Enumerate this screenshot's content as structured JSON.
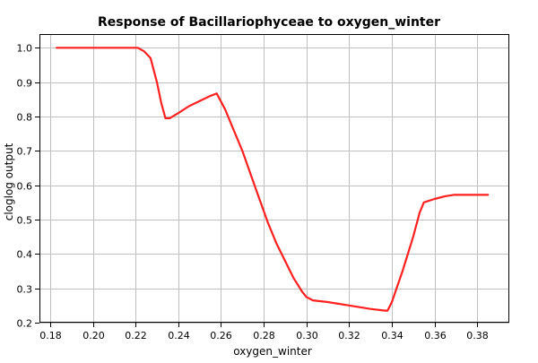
{
  "chart_data": {
    "type": "line",
    "title": "Response of Bacillariophyceae to oxygen_winter",
    "xlabel": "oxygen_winter",
    "ylabel": "cloglog output",
    "xlim": [
      0.175,
      0.395
    ],
    "ylim": [
      0.2,
      1.04
    ],
    "x_ticks": [
      0.18,
      0.2,
      0.22,
      0.24,
      0.26,
      0.28,
      0.3,
      0.32,
      0.34,
      0.36,
      0.38
    ],
    "x_tick_labels": [
      "0.18",
      "0.20",
      "0.22",
      "0.24",
      "0.26",
      "0.28",
      "0.30",
      "0.32",
      "0.34",
      "0.36",
      "0.38"
    ],
    "y_ticks": [
      0.2,
      0.3,
      0.4,
      0.5,
      0.6,
      0.7,
      0.8,
      0.9,
      1.0
    ],
    "y_tick_labels": [
      "0.2",
      "0.3",
      "0.4",
      "0.5",
      "0.6",
      "0.7",
      "0.8",
      "0.9",
      "1.0"
    ],
    "grid": true,
    "legend": "none",
    "series": [
      {
        "color": "#ff2020",
        "x": [
          0.183,
          0.2,
          0.221,
          0.224,
          0.227,
          0.23,
          0.232,
          0.234,
          0.236,
          0.24,
          0.245,
          0.25,
          0.255,
          0.258,
          0.262,
          0.266,
          0.27,
          0.274,
          0.278,
          0.282,
          0.286,
          0.29,
          0.294,
          0.298,
          0.3,
          0.303,
          0.31,
          0.32,
          0.33,
          0.337,
          0.338,
          0.34,
          0.345,
          0.35,
          0.353,
          0.355,
          0.36,
          0.365,
          0.369,
          0.375,
          0.385
        ],
        "y": [
          1.0,
          1.0,
          1.0,
          0.99,
          0.97,
          0.9,
          0.84,
          0.795,
          0.795,
          0.81,
          0.83,
          0.845,
          0.86,
          0.867,
          0.82,
          0.76,
          0.7,
          0.63,
          0.56,
          0.49,
          0.43,
          0.38,
          0.33,
          0.29,
          0.275,
          0.265,
          0.26,
          0.25,
          0.24,
          0.235,
          0.235,
          0.26,
          0.35,
          0.45,
          0.52,
          0.55,
          0.56,
          0.568,
          0.572,
          0.572,
          0.572
        ]
      }
    ]
  }
}
